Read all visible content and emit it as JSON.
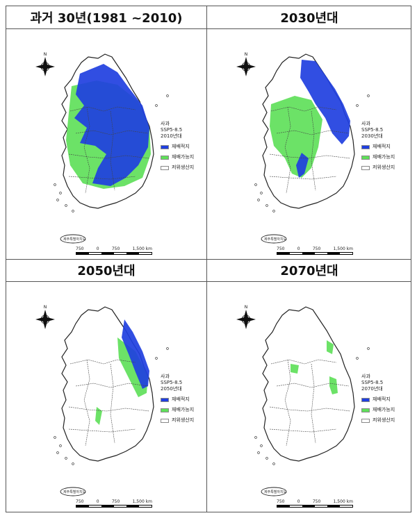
{
  "panels": [
    {
      "title": "과거 30년(1981 ~2010)",
      "legend_title": [
        "사과",
        "SSP5-8.5",
        "2010년대"
      ],
      "suitability": "high"
    },
    {
      "title": "2030년대",
      "legend_title": [
        "사과",
        "SSP5-8.5",
        "2030년대"
      ],
      "suitability": "mid"
    },
    {
      "title": "2050년대",
      "legend_title": [
        "사과",
        "SSP5-8.5",
        "2050년대"
      ],
      "suitability": "low"
    },
    {
      "title": "2070년대",
      "legend_title": [
        "사과",
        "SSP5-8.5",
        "2070년대"
      ],
      "suitability": "minimal"
    }
  ],
  "legend": {
    "items": [
      {
        "label": "재배적지",
        "color": "#1f3fe0"
      },
      {
        "label": "재배가능지",
        "color": "#5fe05a"
      },
      {
        "label": "저위생산지",
        "color": "#ffffff"
      }
    ]
  },
  "scale": {
    "labels": [
      "750",
      "0",
      "750",
      "1,500 km"
    ]
  },
  "jeju_label": "제주특별자치도",
  "colors": {
    "optimal": "#1f3fe0",
    "possible": "#5fe05a",
    "outline": "#222222"
  },
  "north_arrow": "compass-rose-icon"
}
